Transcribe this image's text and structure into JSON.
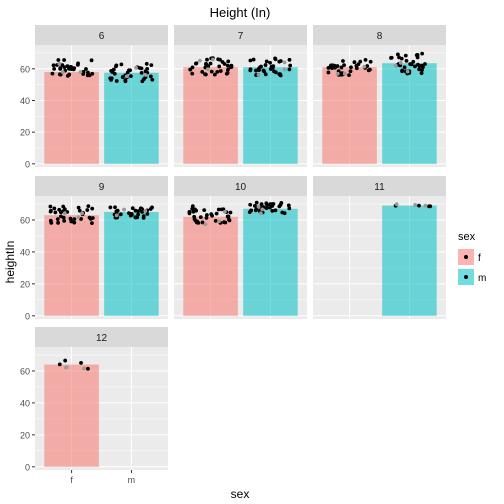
{
  "chart_data": {
    "type": "bar",
    "title": "Height (In)",
    "xlabel": "sex",
    "ylabel": "heightIn",
    "categories": [
      "f",
      "m"
    ],
    "ylim": [
      -2,
      75
    ],
    "yticks": [
      0,
      20,
      40,
      60
    ],
    "grid": true,
    "legend": {
      "title": "sex",
      "position": "right",
      "entries": [
        {
          "label": "f",
          "color": "#F8766D"
        },
        {
          "label": "m",
          "color": "#00BFC4"
        }
      ]
    },
    "colors": {
      "f": "#F8766D",
      "m": "#00BFC4",
      "panel_bg": "#EBEBEB",
      "strip_bg": "#D9D9D9",
      "grid": "#FFFFFF"
    },
    "facets": [
      {
        "label": "6",
        "values": {
          "f": 58,
          "m": 57.5
        },
        "points": {
          "f": [
            55,
            66
          ],
          "m": [
            52,
            64
          ]
        }
      },
      {
        "label": "7",
        "values": {
          "f": 61,
          "m": 61
        },
        "points": {
          "f": [
            56,
            67
          ],
          "m": [
            55,
            67
          ]
        }
      },
      {
        "label": "8",
        "values": {
          "f": 61,
          "m": 63.5
        },
        "points": {
          "f": [
            56,
            66
          ],
          "m": [
            57,
            70
          ]
        }
      },
      {
        "label": "9",
        "values": {
          "f": 63,
          "m": 65
        },
        "points": {
          "f": [
            58,
            69
          ],
          "m": [
            61,
            68
          ]
        }
      },
      {
        "label": "10",
        "values": {
          "f": 62,
          "m": 67
        },
        "points": {
          "f": [
            57,
            69
          ],
          "m": [
            64,
            71
          ]
        }
      },
      {
        "label": "11",
        "values": {
          "f": null,
          "m": 69
        },
        "points": {
          "f": [],
          "m": [
            68,
            70
          ]
        }
      },
      {
        "label": "12",
        "values": {
          "f": 64,
          "m": null
        },
        "points": {
          "f": [
            61,
            67
          ],
          "m": []
        }
      }
    ]
  }
}
